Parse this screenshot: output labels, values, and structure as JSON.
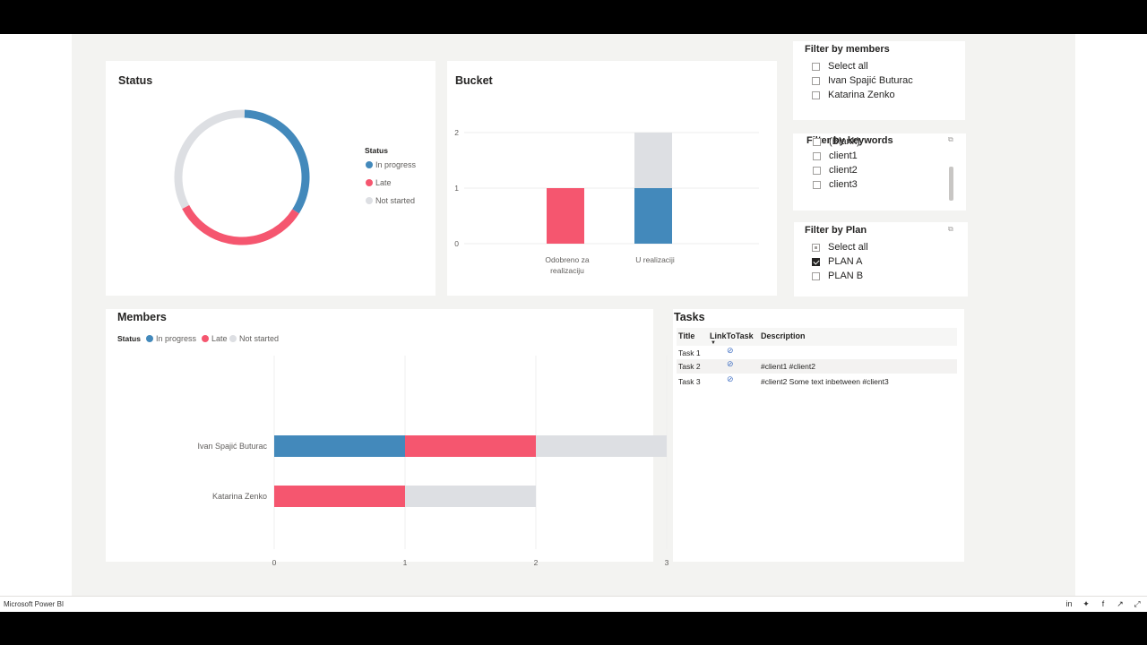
{
  "status_card": {
    "title": "Status",
    "legend_title": "Status",
    "legend": [
      {
        "label": "In progress",
        "color": "#4389bb"
      },
      {
        "label": "Late",
        "color": "#f5566f"
      },
      {
        "label": "Not started",
        "color": "#dddfe3"
      }
    ],
    "chart_data": {
      "type": "pie",
      "labels": [
        "In progress",
        "Late",
        "Not started"
      ],
      "values": [
        1,
        1,
        1
      ],
      "colors": [
        "#4389bb",
        "#f5566f",
        "#dddfe3"
      ]
    }
  },
  "bucket_card": {
    "title": "Bucket",
    "chart_data": {
      "type": "bar",
      "categories": [
        "Odobreno za realizaciju",
        "U realizaciji"
      ],
      "category_lines": [
        [
          "Odobreno za",
          "realizaciju"
        ],
        [
          "U realizaciji"
        ]
      ],
      "series": [
        {
          "values": [
            0,
            1
          ],
          "color": "#4389bb"
        },
        {
          "values": [
            1,
            0
          ],
          "color": "#f5566f"
        },
        {
          "values": [
            0,
            1
          ],
          "color": "#dddfe3"
        }
      ],
      "yticks": [
        "0",
        "1",
        "2"
      ],
      "ylim": [
        0,
        2
      ]
    }
  },
  "members_card": {
    "title": "Members",
    "legend_title": "Status",
    "legend": [
      {
        "label": "In progress",
        "color": "#4389bb"
      },
      {
        "label": "Late",
        "color": "#f5566f"
      },
      {
        "label": "Not started",
        "color": "#dddfe3"
      }
    ],
    "chart_data": {
      "type": "bar",
      "orientation": "horizontal",
      "categories": [
        "Ivan Spajić Buturac",
        "Katarina Zenko"
      ],
      "series": [
        {
          "name": "In progress",
          "values": [
            1,
            0
          ],
          "color": "#4389bb"
        },
        {
          "name": "Late",
          "values": [
            1,
            1
          ],
          "color": "#f5566f"
        },
        {
          "name": "Not started",
          "values": [
            1,
            1
          ],
          "color": "#dddfe3"
        }
      ],
      "xticks": [
        "0",
        "1",
        "2",
        "3"
      ],
      "xlim": [
        0,
        3
      ]
    }
  },
  "tasks_card": {
    "title": "Tasks",
    "headers": {
      "title": "Title",
      "link": "LinkToTask",
      "description": "Description"
    },
    "rows": [
      {
        "title": "Task 1",
        "description": ""
      },
      {
        "title": "Task 2",
        "description": "#client1 #client2"
      },
      {
        "title": "Task 3",
        "description": "#client2 Some text inbetween #client3"
      }
    ]
  },
  "filter_members": {
    "title": "Filter by members",
    "items": [
      {
        "label": "Select all",
        "state": "unchecked"
      },
      {
        "label": "Ivan Spajić Buturac",
        "state": "unchecked"
      },
      {
        "label": "Katarina Zenko",
        "state": "unchecked"
      }
    ]
  },
  "filter_keywords": {
    "title": "Filter by keywords",
    "items": [
      {
        "label": "(Blank)",
        "state": "unchecked"
      },
      {
        "label": "client1",
        "state": "unchecked"
      },
      {
        "label": "client2",
        "state": "unchecked"
      },
      {
        "label": "client3",
        "state": "unchecked"
      }
    ]
  },
  "filter_plan": {
    "title": "Filter by Plan",
    "items": [
      {
        "label": "Select all",
        "state": "partial"
      },
      {
        "label": "PLAN A",
        "state": "checked"
      },
      {
        "label": "PLAN B",
        "state": "unchecked"
      }
    ]
  },
  "footer": {
    "brand": "Microsoft Power BI",
    "icons": [
      "linkedin-icon",
      "twitter-icon",
      "facebook-icon",
      "share-icon",
      "fullscreen-icon"
    ]
  }
}
